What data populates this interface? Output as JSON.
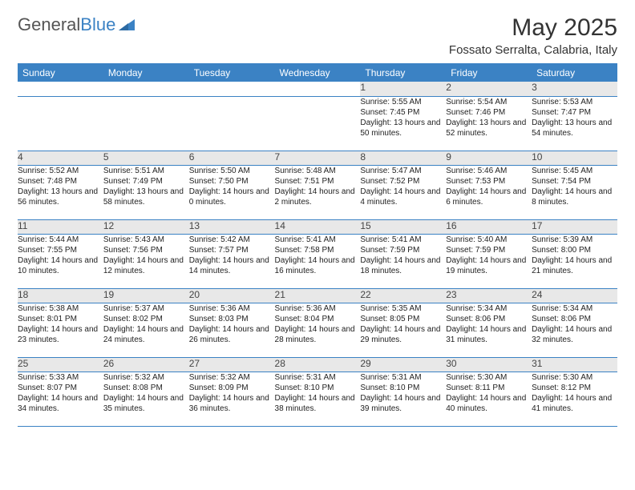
{
  "brand": {
    "word1": "General",
    "word2": "Blue"
  },
  "title": "May 2025",
  "location": "Fossato Serralta, Calabria, Italy",
  "colors": {
    "header_bg": "#3b82c4",
    "header_text": "#ffffff",
    "daynum_bg": "#e8e8e8",
    "border": "#3b82c4",
    "text": "#222222",
    "page_bg": "#ffffff"
  },
  "weekdays": [
    "Sunday",
    "Monday",
    "Tuesday",
    "Wednesday",
    "Thursday",
    "Friday",
    "Saturday"
  ],
  "weeks": [
    {
      "nums": [
        "",
        "",
        "",
        "",
        "1",
        "2",
        "3"
      ],
      "cells": [
        null,
        null,
        null,
        null,
        {
          "sunrise": "5:55 AM",
          "sunset": "7:45 PM",
          "daylight": "13 hours and 50 minutes."
        },
        {
          "sunrise": "5:54 AM",
          "sunset": "7:46 PM",
          "daylight": "13 hours and 52 minutes."
        },
        {
          "sunrise": "5:53 AM",
          "sunset": "7:47 PM",
          "daylight": "13 hours and 54 minutes."
        }
      ]
    },
    {
      "nums": [
        "4",
        "5",
        "6",
        "7",
        "8",
        "9",
        "10"
      ],
      "cells": [
        {
          "sunrise": "5:52 AM",
          "sunset": "7:48 PM",
          "daylight": "13 hours and 56 minutes."
        },
        {
          "sunrise": "5:51 AM",
          "sunset": "7:49 PM",
          "daylight": "13 hours and 58 minutes."
        },
        {
          "sunrise": "5:50 AM",
          "sunset": "7:50 PM",
          "daylight": "14 hours and 0 minutes."
        },
        {
          "sunrise": "5:48 AM",
          "sunset": "7:51 PM",
          "daylight": "14 hours and 2 minutes."
        },
        {
          "sunrise": "5:47 AM",
          "sunset": "7:52 PM",
          "daylight": "14 hours and 4 minutes."
        },
        {
          "sunrise": "5:46 AM",
          "sunset": "7:53 PM",
          "daylight": "14 hours and 6 minutes."
        },
        {
          "sunrise": "5:45 AM",
          "sunset": "7:54 PM",
          "daylight": "14 hours and 8 minutes."
        }
      ]
    },
    {
      "nums": [
        "11",
        "12",
        "13",
        "14",
        "15",
        "16",
        "17"
      ],
      "cells": [
        {
          "sunrise": "5:44 AM",
          "sunset": "7:55 PM",
          "daylight": "14 hours and 10 minutes."
        },
        {
          "sunrise": "5:43 AM",
          "sunset": "7:56 PM",
          "daylight": "14 hours and 12 minutes."
        },
        {
          "sunrise": "5:42 AM",
          "sunset": "7:57 PM",
          "daylight": "14 hours and 14 minutes."
        },
        {
          "sunrise": "5:41 AM",
          "sunset": "7:58 PM",
          "daylight": "14 hours and 16 minutes."
        },
        {
          "sunrise": "5:41 AM",
          "sunset": "7:59 PM",
          "daylight": "14 hours and 18 minutes."
        },
        {
          "sunrise": "5:40 AM",
          "sunset": "7:59 PM",
          "daylight": "14 hours and 19 minutes."
        },
        {
          "sunrise": "5:39 AM",
          "sunset": "8:00 PM",
          "daylight": "14 hours and 21 minutes."
        }
      ]
    },
    {
      "nums": [
        "18",
        "19",
        "20",
        "21",
        "22",
        "23",
        "24"
      ],
      "cells": [
        {
          "sunrise": "5:38 AM",
          "sunset": "8:01 PM",
          "daylight": "14 hours and 23 minutes."
        },
        {
          "sunrise": "5:37 AM",
          "sunset": "8:02 PM",
          "daylight": "14 hours and 24 minutes."
        },
        {
          "sunrise": "5:36 AM",
          "sunset": "8:03 PM",
          "daylight": "14 hours and 26 minutes."
        },
        {
          "sunrise": "5:36 AM",
          "sunset": "8:04 PM",
          "daylight": "14 hours and 28 minutes."
        },
        {
          "sunrise": "5:35 AM",
          "sunset": "8:05 PM",
          "daylight": "14 hours and 29 minutes."
        },
        {
          "sunrise": "5:34 AM",
          "sunset": "8:06 PM",
          "daylight": "14 hours and 31 minutes."
        },
        {
          "sunrise": "5:34 AM",
          "sunset": "8:06 PM",
          "daylight": "14 hours and 32 minutes."
        }
      ]
    },
    {
      "nums": [
        "25",
        "26",
        "27",
        "28",
        "29",
        "30",
        "31"
      ],
      "cells": [
        {
          "sunrise": "5:33 AM",
          "sunset": "8:07 PM",
          "daylight": "14 hours and 34 minutes."
        },
        {
          "sunrise": "5:32 AM",
          "sunset": "8:08 PM",
          "daylight": "14 hours and 35 minutes."
        },
        {
          "sunrise": "5:32 AM",
          "sunset": "8:09 PM",
          "daylight": "14 hours and 36 minutes."
        },
        {
          "sunrise": "5:31 AM",
          "sunset": "8:10 PM",
          "daylight": "14 hours and 38 minutes."
        },
        {
          "sunrise": "5:31 AM",
          "sunset": "8:10 PM",
          "daylight": "14 hours and 39 minutes."
        },
        {
          "sunrise": "5:30 AM",
          "sunset": "8:11 PM",
          "daylight": "14 hours and 40 minutes."
        },
        {
          "sunrise": "5:30 AM",
          "sunset": "8:12 PM",
          "daylight": "14 hours and 41 minutes."
        }
      ]
    }
  ],
  "labels": {
    "sunrise": "Sunrise: ",
    "sunset": "Sunset: ",
    "daylight": "Daylight: "
  }
}
